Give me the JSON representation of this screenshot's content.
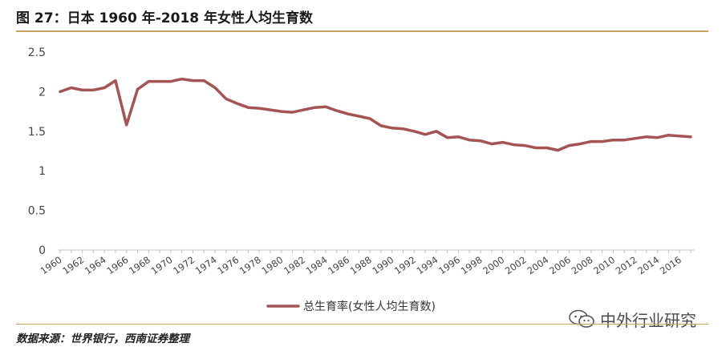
{
  "header": {
    "title": "图 27：日本 1960 年-2018 年女性人均生育数"
  },
  "footer": {
    "source": "数据来源：世界银行，西南证券整理"
  },
  "watermark": {
    "text": "中外行业研究",
    "icon": "wechat-icon"
  },
  "chart_data": {
    "type": "line",
    "title": "",
    "xlabel": "",
    "ylabel": "",
    "ylim": [
      0,
      2.5
    ],
    "yticks": [
      "0",
      "0.5",
      "1",
      "1.5",
      "2",
      "2.5"
    ],
    "grid": false,
    "legend_position": "bottom",
    "x": [
      1960,
      1961,
      1962,
      1963,
      1964,
      1965,
      1966,
      1967,
      1968,
      1969,
      1970,
      1971,
      1972,
      1973,
      1974,
      1975,
      1976,
      1977,
      1978,
      1979,
      1980,
      1981,
      1982,
      1983,
      1984,
      1985,
      1986,
      1987,
      1988,
      1989,
      1990,
      1991,
      1992,
      1993,
      1994,
      1995,
      1996,
      1997,
      1998,
      1999,
      2000,
      2001,
      2002,
      2003,
      2004,
      2005,
      2006,
      2007,
      2008,
      2009,
      2010,
      2011,
      2012,
      2013,
      2014,
      2015,
      2016,
      2017
    ],
    "xticks": [
      "1960",
      "1962",
      "1964",
      "1966",
      "1968",
      "1970",
      "1972",
      "1974",
      "1976",
      "1978",
      "1980",
      "1982",
      "1984",
      "1986",
      "1988",
      "1990",
      "1992",
      "1994",
      "1996",
      "1998",
      "2000",
      "2002",
      "2004",
      "2006",
      "2008",
      "2010",
      "2012",
      "2014",
      "2016"
    ],
    "series": [
      {
        "name": "总生育率(女性人均生育数)",
        "color": "#a65353",
        "values": [
          2.0,
          2.05,
          2.02,
          2.02,
          2.05,
          2.14,
          1.58,
          2.03,
          2.13,
          2.13,
          2.13,
          2.16,
          2.14,
          2.14,
          2.05,
          1.91,
          1.85,
          1.8,
          1.79,
          1.77,
          1.75,
          1.74,
          1.77,
          1.8,
          1.81,
          1.76,
          1.72,
          1.69,
          1.66,
          1.57,
          1.54,
          1.53,
          1.5,
          1.46,
          1.5,
          1.42,
          1.43,
          1.39,
          1.38,
          1.34,
          1.36,
          1.33,
          1.32,
          1.29,
          1.29,
          1.26,
          1.32,
          1.34,
          1.37,
          1.37,
          1.39,
          1.39,
          1.41,
          1.43,
          1.42,
          1.45,
          1.44,
          1.43
        ]
      }
    ]
  }
}
